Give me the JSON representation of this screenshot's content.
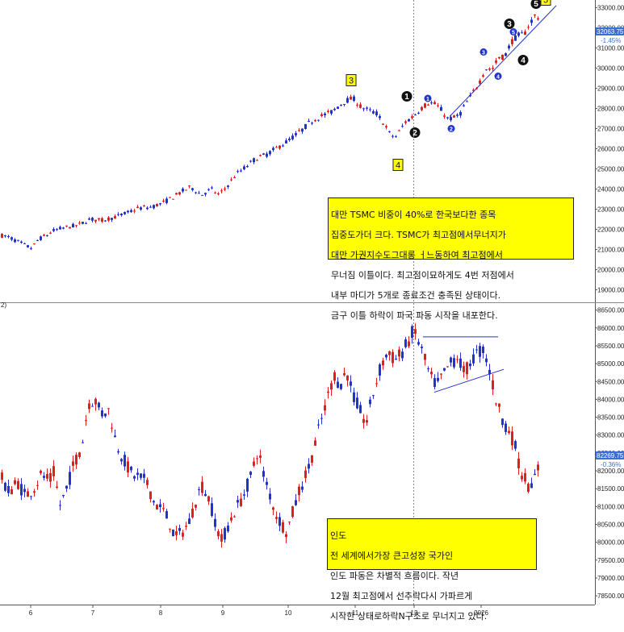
{
  "colors": {
    "up": "#e02020",
    "down": "#2233cc",
    "note_bg": "#ffff00",
    "wave_circle": "#111111",
    "wave_blue": "#2233cc",
    "trendline": "#2233cc"
  },
  "chart_data": [
    {
      "type": "candlestick",
      "title": "",
      "price_tag": "32063.75",
      "change_tag": "-1.45%",
      "ylim": [
        18500,
        33300
      ],
      "yticks": [
        "33000.00",
        "32000.00",
        "31000.00",
        "30000.00",
        "29000.00",
        "28000.00",
        "27000.00",
        "26000.00",
        "25000.00",
        "24000.00",
        "23000.00",
        "22000.00",
        "21000.00",
        "20000.00",
        "19000.00"
      ],
      "close_path": [
        [
          0,
          21700
        ],
        [
          10,
          21600
        ],
        [
          20,
          21400
        ],
        [
          30,
          21200
        ],
        [
          38,
          21050
        ],
        [
          46,
          21500
        ],
        [
          56,
          21700
        ],
        [
          66,
          21950
        ],
        [
          80,
          22100
        ],
        [
          95,
          22200
        ],
        [
          110,
          22500
        ],
        [
          125,
          22450
        ],
        [
          140,
          22600
        ],
        [
          155,
          22800
        ],
        [
          170,
          23050
        ],
        [
          185,
          23100
        ],
        [
          200,
          23300
        ],
        [
          215,
          23650
        ],
        [
          225,
          23900
        ],
        [
          235,
          24100
        ],
        [
          248,
          23700
        ],
        [
          260,
          24000
        ],
        [
          270,
          23700
        ],
        [
          282,
          24250
        ],
        [
          290,
          24700
        ],
        [
          300,
          25000
        ],
        [
          315,
          25500
        ],
        [
          328,
          25700
        ],
        [
          340,
          26000
        ],
        [
          352,
          26300
        ],
        [
          362,
          26600
        ],
        [
          372,
          26900
        ],
        [
          382,
          27300
        ],
        [
          395,
          27600
        ],
        [
          405,
          27750
        ],
        [
          412,
          27900
        ],
        [
          420,
          28200
        ],
        [
          428,
          28400
        ],
        [
          436,
          28500
        ],
        [
          445,
          28100
        ],
        [
          455,
          27900
        ],
        [
          465,
          27750
        ],
        [
          475,
          27200
        ],
        [
          480,
          26800
        ],
        [
          488,
          26550
        ],
        [
          494,
          26900
        ],
        [
          500,
          27300
        ],
        [
          510,
          27600
        ],
        [
          520,
          28000
        ],
        [
          530,
          28300
        ],
        [
          538,
          28200
        ],
        [
          546,
          27900
        ],
        [
          552,
          27500
        ],
        [
          560,
          27500
        ],
        [
          568,
          27700
        ],
        [
          575,
          28200
        ],
        [
          585,
          28800
        ],
        [
          595,
          29500
        ],
        [
          600,
          30000
        ],
        [
          608,
          29900
        ],
        [
          616,
          30500
        ],
        [
          624,
          30600
        ],
        [
          632,
          31300
        ],
        [
          640,
          31600
        ],
        [
          648,
          31700
        ],
        [
          656,
          32300
        ],
        [
          663,
          32700
        ],
        [
          668,
          32250
        ]
      ],
      "waves": [
        {
          "label": "1",
          "style": "circle",
          "at": [
            504,
            28600
          ]
        },
        {
          "label": "2",
          "style": "circle",
          "at": [
            514,
            26800
          ]
        },
        {
          "label": "3",
          "style": "circle",
          "at": [
            631,
            32200
          ]
        },
        {
          "label": "4",
          "style": "circle",
          "at": [
            648,
            30400
          ]
        },
        {
          "label": "5",
          "style": "circle",
          "at": [
            664,
            33200
          ]
        },
        {
          "label": "1",
          "style": "blue",
          "at": [
            530,
            28500
          ]
        },
        {
          "label": "2",
          "style": "blue",
          "at": [
            559,
            27000
          ]
        },
        {
          "label": "3",
          "style": "blue",
          "at": [
            599,
            30800
          ]
        },
        {
          "label": "4",
          "style": "blue",
          "at": [
            617,
            29600
          ]
        },
        {
          "label": "5",
          "style": "blue",
          "at": [
            636,
            31800
          ]
        },
        {
          "label": "3",
          "style": "box",
          "at": [
            435,
            29400
          ]
        },
        {
          "label": "4",
          "style": "box",
          "at": [
            493,
            25200
          ]
        },
        {
          "label": "5",
          "style": "box",
          "at": [
            676,
            33400
          ]
        }
      ]
    },
    {
      "type": "candlestick",
      "title": "",
      "price_tag": "82269.75",
      "change_tag": "-0.36%",
      "ylim": [
        78300,
        86650
      ],
      "yticks": [
        "86500.00",
        "86000.00",
        "85500.00",
        "85000.00",
        "84500.00",
        "84000.00",
        "83500.00",
        "83000.00",
        "82500.00",
        "82000.00",
        "81500.00",
        "81000.00",
        "80500.00",
        "80000.00",
        "79500.00",
        "79000.00",
        "78500.00"
      ],
      "close_path": [
        [
          0,
          81800
        ],
        [
          10,
          81400
        ],
        [
          20,
          81700
        ],
        [
          30,
          81300
        ],
        [
          40,
          81500
        ],
        [
          50,
          81900
        ],
        [
          60,
          81700
        ],
        [
          66,
          82000
        ],
        [
          72,
          81000
        ],
        [
          80,
          81400
        ],
        [
          90,
          82200
        ],
        [
          100,
          82700
        ],
        [
          108,
          83900
        ],
        [
          116,
          84000
        ],
        [
          124,
          83600
        ],
        [
          134,
          83700
        ],
        [
          142,
          82800
        ],
        [
          152,
          82300
        ],
        [
          162,
          81900
        ],
        [
          172,
          81800
        ],
        [
          180,
          81700
        ],
        [
          190,
          81100
        ],
        [
          200,
          80900
        ],
        [
          208,
          80600
        ],
        [
          216,
          80100
        ],
        [
          224,
          80300
        ],
        [
          232,
          80500
        ],
        [
          240,
          81100
        ],
        [
          248,
          81600
        ],
        [
          256,
          81300
        ],
        [
          264,
          80700
        ],
        [
          272,
          80000
        ],
        [
          280,
          80400
        ],
        [
          290,
          80900
        ],
        [
          300,
          81300
        ],
        [
          310,
          81900
        ],
        [
          318,
          82600
        ],
        [
          326,
          81800
        ],
        [
          332,
          81400
        ],
        [
          340,
          80800
        ],
        [
          348,
          80500
        ],
        [
          354,
          80300
        ],
        [
          362,
          80900
        ],
        [
          370,
          81500
        ],
        [
          378,
          81900
        ],
        [
          386,
          82500
        ],
        [
          394,
          83200
        ],
        [
          404,
          84000
        ],
        [
          412,
          84700
        ],
        [
          420,
          84400
        ],
        [
          428,
          84800
        ],
        [
          436,
          84100
        ],
        [
          444,
          83700
        ],
        [
          452,
          83300
        ],
        [
          460,
          84100
        ],
        [
          470,
          84900
        ],
        [
          478,
          85300
        ],
        [
          488,
          85100
        ],
        [
          496,
          85300
        ],
        [
          504,
          85600
        ],
        [
          510,
          85900
        ],
        [
          518,
          85600
        ],
        [
          526,
          85000
        ],
        [
          532,
          84600
        ],
        [
          540,
          84400
        ],
        [
          548,
          84700
        ],
        [
          556,
          85000
        ],
        [
          566,
          85200
        ],
        [
          574,
          84700
        ],
        [
          582,
          85100
        ],
        [
          590,
          85300
        ],
        [
          598,
          85400
        ],
        [
          606,
          84700
        ],
        [
          614,
          83900
        ],
        [
          622,
          83400
        ],
        [
          630,
          83100
        ],
        [
          638,
          82600
        ],
        [
          644,
          81900
        ],
        [
          650,
          81800
        ],
        [
          656,
          81400
        ],
        [
          662,
          81900
        ],
        [
          668,
          82250
        ]
      ]
    }
  ],
  "axis_bottom": {
    "labels": [
      "6",
      "7",
      "8",
      "9",
      "10",
      "11",
      "12",
      "2026"
    ]
  },
  "pane2_corner_label": "2)",
  "note_top": {
    "lines": [
      "대만 TSMC 비중이 40%로 한국보다한 종목",
      "집중도가더 크다. TSMC가 최고점에서무너지가",
      "대만 가권지수도그대롱 ㅓ느동하여 최고점에서",
      "무너짐 이틀이다. 최고점이묘하게도 4번 저점에서",
      "내부 마디가 5개로 종료조건 충족된 상태이다.",
      "금구 이틀 하락이 파국 파동 시작을 내포한다."
    ]
  },
  "note_bottom": {
    "lines": [
      "인도",
      "전 세계에서가장 큰고성장 국가인",
      "인도 파동은 차별적 흐름이다. 작년",
      "12월 최고점에서 선추락다시 가파르게",
      "시작한 상태로하락N구조로 무너지고 있다."
    ]
  }
}
